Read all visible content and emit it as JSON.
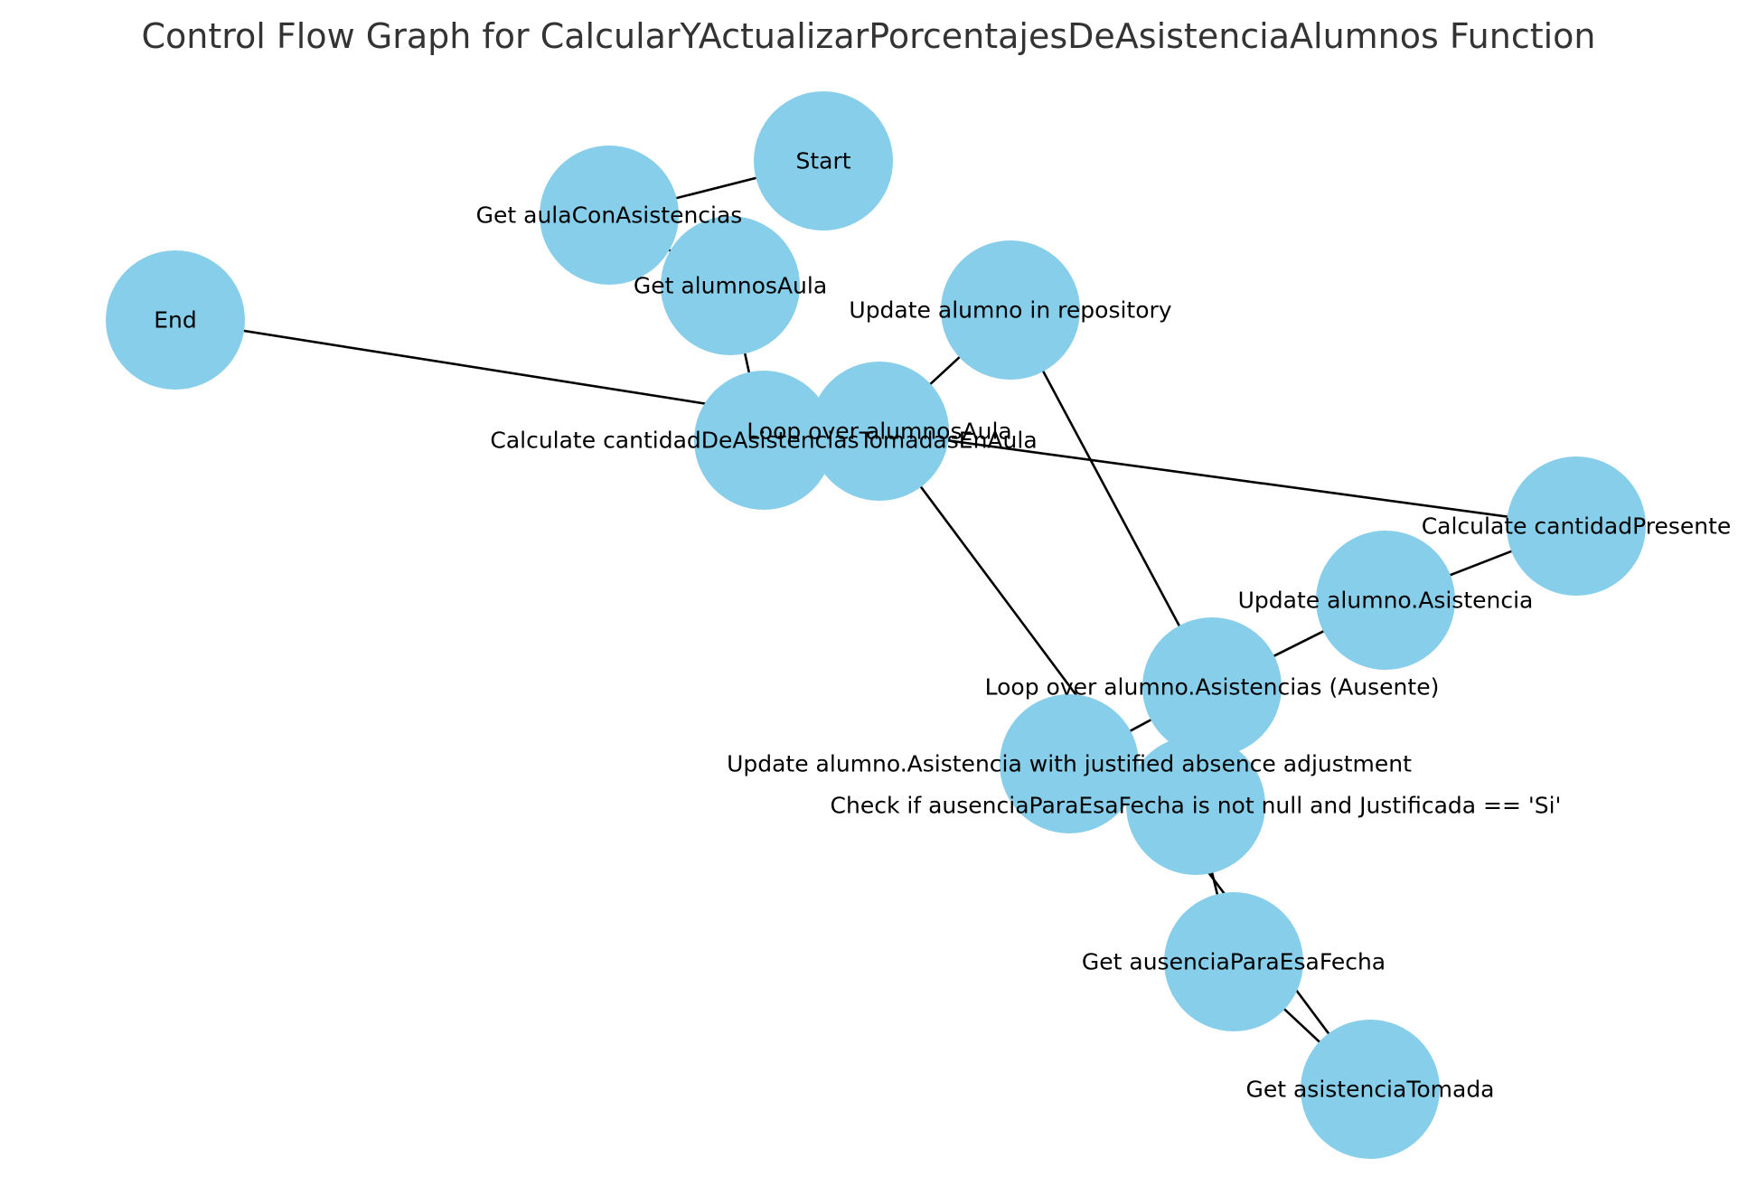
{
  "title": "Control Flow Graph for CalcularYActualizarPorcentajesDeAsistenciaAlumnos Function",
  "node_color": "#87ceeb",
  "nodes": [
    {
      "id": "start",
      "label": "Start"
    },
    {
      "id": "get-aula",
      "label": "Get aulaConAsistencias"
    },
    {
      "id": "get-alumnos",
      "label": "Get alumnosAula"
    },
    {
      "id": "end",
      "label": "End"
    },
    {
      "id": "update-repo",
      "label": "Update alumno in repository"
    },
    {
      "id": "calc-cantidad",
      "label": "Calculate cantidadDeAsistenciasTomadasEnAula"
    },
    {
      "id": "loop-alumnos",
      "label": "Loop over alumnosAula"
    },
    {
      "id": "calc-presente",
      "label": "Calculate cantidadPresente"
    },
    {
      "id": "update-asistencia",
      "label": "Update alumno.Asistencia"
    },
    {
      "id": "loop-ausente",
      "label": "Loop over alumno.Asistencias (Ausente)"
    },
    {
      "id": "update-justified",
      "label": "Update alumno.Asistencia with justified absence adjustment"
    },
    {
      "id": "check-ausencia",
      "label": "Check if ausenciaParaEsaFecha is not null and Justificada == 'Si'"
    },
    {
      "id": "get-ausencia",
      "label": "Get ausenciaParaEsaFecha"
    },
    {
      "id": "get-asistencia",
      "label": "Get asistenciaTomada"
    }
  ],
  "edges": [
    [
      "start",
      "get-aula"
    ],
    [
      "get-aula",
      "get-alumnos"
    ],
    [
      "get-alumnos",
      "calc-cantidad"
    ],
    [
      "calc-cantidad",
      "loop-alumnos"
    ],
    [
      "loop-alumnos",
      "get-asistencia"
    ],
    [
      "get-asistencia",
      "get-ausencia"
    ],
    [
      "get-ausencia",
      "check-ausencia"
    ],
    [
      "check-ausencia",
      "update-justified"
    ],
    [
      "update-justified",
      "loop-ausente"
    ],
    [
      "loop-ausente",
      "update-asistencia"
    ],
    [
      "update-asistencia",
      "calc-presente"
    ],
    [
      "calc-presente",
      "loop-alumnos"
    ],
    [
      "loop-alumnos",
      "update-repo"
    ],
    [
      "update-repo",
      "loop-ausente"
    ],
    [
      "loop-alumnos",
      "end"
    ]
  ]
}
